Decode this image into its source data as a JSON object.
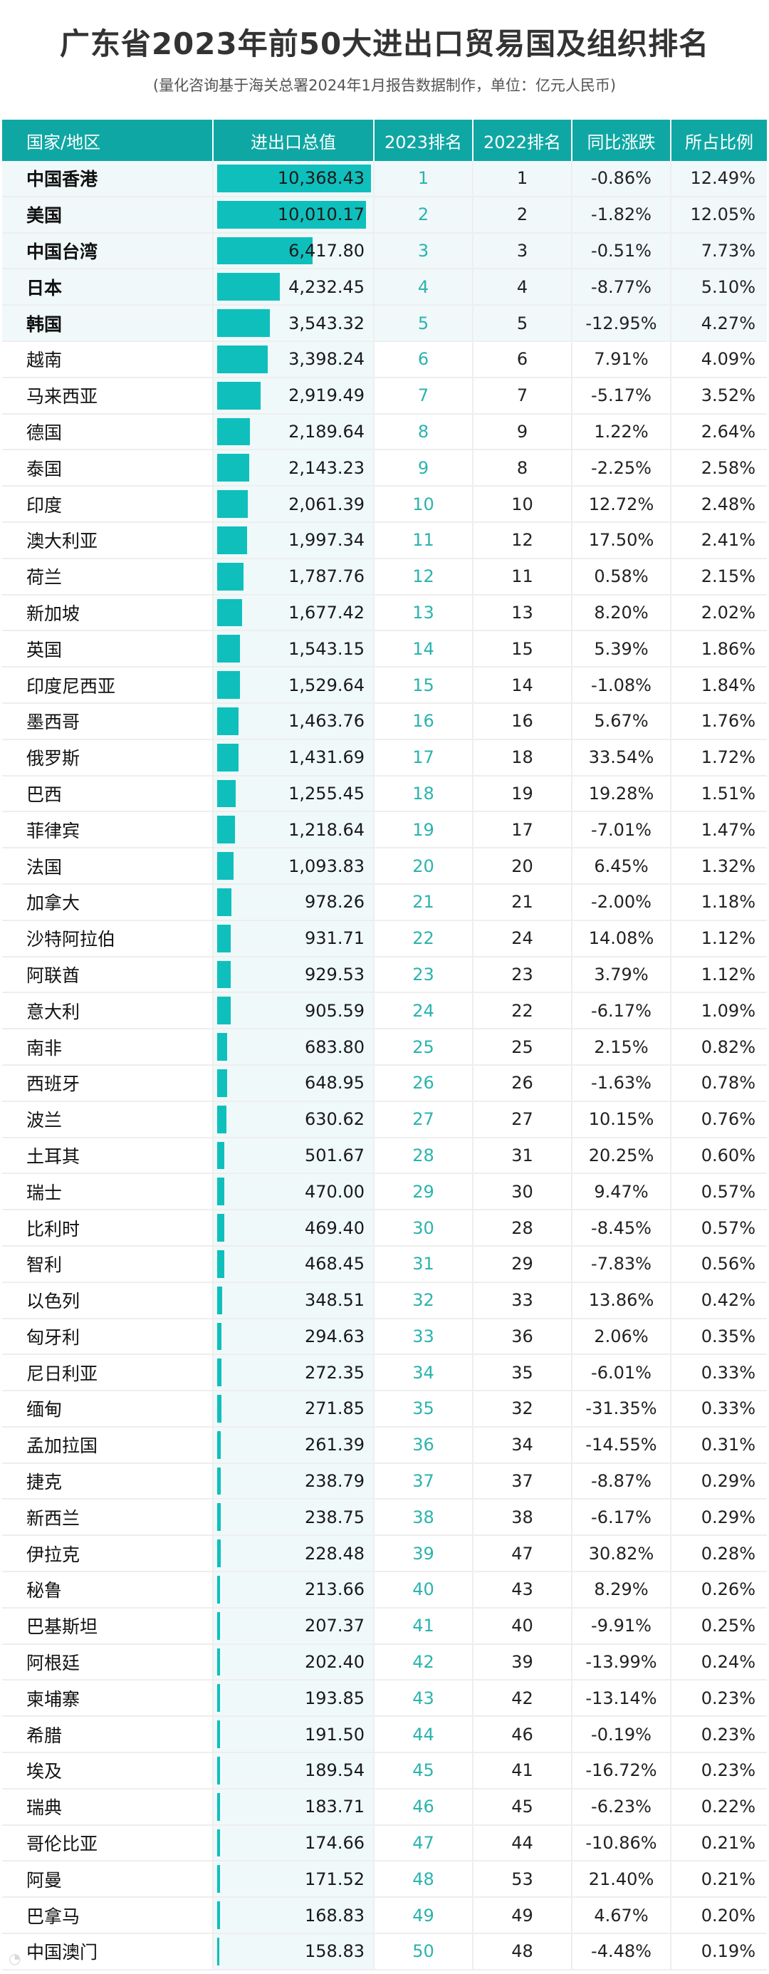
{
  "header": {
    "title": "广东省2023年前50大进出口贸易国及组织排名",
    "subtitle": "(量化咨询基于海关总署2024年1月报告数据制作，单位：亿元人民币)"
  },
  "table": {
    "columns": [
      "国家/地区",
      "进出口总值",
      "2023排名",
      "2022排名",
      "同比涨跌",
      "所占比例"
    ],
    "rows": [
      {
        "name": "中国香港",
        "value": "10,368.43",
        "r2023": "1",
        "r2022": "1",
        "yoy": "-0.86%",
        "share": "12.49%"
      },
      {
        "name": "美国",
        "value": "10,010.17",
        "r2023": "2",
        "r2022": "2",
        "yoy": "-1.82%",
        "share": "12.05%"
      },
      {
        "name": "中国台湾",
        "value": "6,417.80",
        "r2023": "3",
        "r2022": "3",
        "yoy": "-0.51%",
        "share": "7.73%"
      },
      {
        "name": "日本",
        "value": "4,232.45",
        "r2023": "4",
        "r2022": "4",
        "yoy": "-8.77%",
        "share": "5.10%"
      },
      {
        "name": "韩国",
        "value": "3,543.32",
        "r2023": "5",
        "r2022": "5",
        "yoy": "-12.95%",
        "share": "4.27%"
      },
      {
        "name": "越南",
        "value": "3,398.24",
        "r2023": "6",
        "r2022": "6",
        "yoy": "7.91%",
        "share": "4.09%"
      },
      {
        "name": "马来西亚",
        "value": "2,919.49",
        "r2023": "7",
        "r2022": "7",
        "yoy": "-5.17%",
        "share": "3.52%"
      },
      {
        "name": "德国",
        "value": "2,189.64",
        "r2023": "8",
        "r2022": "9",
        "yoy": "1.22%",
        "share": "2.64%"
      },
      {
        "name": "泰国",
        "value": "2,143.23",
        "r2023": "9",
        "r2022": "8",
        "yoy": "-2.25%",
        "share": "2.58%"
      },
      {
        "name": "印度",
        "value": "2,061.39",
        "r2023": "10",
        "r2022": "10",
        "yoy": "12.72%",
        "share": "2.48%"
      },
      {
        "name": "澳大利亚",
        "value": "1,997.34",
        "r2023": "11",
        "r2022": "12",
        "yoy": "17.50%",
        "share": "2.41%"
      },
      {
        "name": "荷兰",
        "value": "1,787.76",
        "r2023": "12",
        "r2022": "11",
        "yoy": "0.58%",
        "share": "2.15%"
      },
      {
        "name": "新加坡",
        "value": "1,677.42",
        "r2023": "13",
        "r2022": "13",
        "yoy": "8.20%",
        "share": "2.02%"
      },
      {
        "name": "英国",
        "value": "1,543.15",
        "r2023": "14",
        "r2022": "15",
        "yoy": "5.39%",
        "share": "1.86%"
      },
      {
        "name": "印度尼西亚",
        "value": "1,529.64",
        "r2023": "15",
        "r2022": "14",
        "yoy": "-1.08%",
        "share": "1.84%"
      },
      {
        "name": "墨西哥",
        "value": "1,463.76",
        "r2023": "16",
        "r2022": "16",
        "yoy": "5.67%",
        "share": "1.76%"
      },
      {
        "name": "俄罗斯",
        "value": "1,431.69",
        "r2023": "17",
        "r2022": "18",
        "yoy": "33.54%",
        "share": "1.72%"
      },
      {
        "name": "巴西",
        "value": "1,255.45",
        "r2023": "18",
        "r2022": "19",
        "yoy": "19.28%",
        "share": "1.51%"
      },
      {
        "name": "菲律宾",
        "value": "1,218.64",
        "r2023": "19",
        "r2022": "17",
        "yoy": "-7.01%",
        "share": "1.47%"
      },
      {
        "name": "法国",
        "value": "1,093.83",
        "r2023": "20",
        "r2022": "20",
        "yoy": "6.45%",
        "share": "1.32%"
      },
      {
        "name": "加拿大",
        "value": "978.26",
        "r2023": "21",
        "r2022": "21",
        "yoy": "-2.00%",
        "share": "1.18%"
      },
      {
        "name": "沙特阿拉伯",
        "value": "931.71",
        "r2023": "22",
        "r2022": "24",
        "yoy": "14.08%",
        "share": "1.12%"
      },
      {
        "name": "阿联酋",
        "value": "929.53",
        "r2023": "23",
        "r2022": "23",
        "yoy": "3.79%",
        "share": "1.12%"
      },
      {
        "name": "意大利",
        "value": "905.59",
        "r2023": "24",
        "r2022": "22",
        "yoy": "-6.17%",
        "share": "1.09%"
      },
      {
        "name": "南非",
        "value": "683.80",
        "r2023": "25",
        "r2022": "25",
        "yoy": "2.15%",
        "share": "0.82%"
      },
      {
        "name": "西班牙",
        "value": "648.95",
        "r2023": "26",
        "r2022": "26",
        "yoy": "-1.63%",
        "share": "0.78%"
      },
      {
        "name": "波兰",
        "value": "630.62",
        "r2023": "27",
        "r2022": "27",
        "yoy": "10.15%",
        "share": "0.76%"
      },
      {
        "name": "土耳其",
        "value": "501.67",
        "r2023": "28",
        "r2022": "31",
        "yoy": "20.25%",
        "share": "0.60%"
      },
      {
        "name": "瑞士",
        "value": "470.00",
        "r2023": "29",
        "r2022": "30",
        "yoy": "9.47%",
        "share": "0.57%"
      },
      {
        "name": "比利时",
        "value": "469.40",
        "r2023": "30",
        "r2022": "28",
        "yoy": "-8.45%",
        "share": "0.57%"
      },
      {
        "name": "智利",
        "value": "468.45",
        "r2023": "31",
        "r2022": "29",
        "yoy": "-7.83%",
        "share": "0.56%"
      },
      {
        "name": "以色列",
        "value": "348.51",
        "r2023": "32",
        "r2022": "33",
        "yoy": "13.86%",
        "share": "0.42%"
      },
      {
        "name": "匈牙利",
        "value": "294.63",
        "r2023": "33",
        "r2022": "36",
        "yoy": "2.06%",
        "share": "0.35%"
      },
      {
        "name": "尼日利亚",
        "value": "272.35",
        "r2023": "34",
        "r2022": "35",
        "yoy": "-6.01%",
        "share": "0.33%"
      },
      {
        "name": "缅甸",
        "value": "271.85",
        "r2023": "35",
        "r2022": "32",
        "yoy": "-31.35%",
        "share": "0.33%"
      },
      {
        "name": "孟加拉国",
        "value": "261.39",
        "r2023": "36",
        "r2022": "34",
        "yoy": "-14.55%",
        "share": "0.31%"
      },
      {
        "name": "捷克",
        "value": "238.79",
        "r2023": "37",
        "r2022": "37",
        "yoy": "-8.87%",
        "share": "0.29%"
      },
      {
        "name": "新西兰",
        "value": "238.75",
        "r2023": "38",
        "r2022": "38",
        "yoy": "-6.17%",
        "share": "0.29%"
      },
      {
        "name": "伊拉克",
        "value": "228.48",
        "r2023": "39",
        "r2022": "47",
        "yoy": "30.82%",
        "share": "0.28%"
      },
      {
        "name": "秘鲁",
        "value": "213.66",
        "r2023": "40",
        "r2022": "43",
        "yoy": "8.29%",
        "share": "0.26%"
      },
      {
        "name": "巴基斯坦",
        "value": "207.37",
        "r2023": "41",
        "r2022": "40",
        "yoy": "-9.91%",
        "share": "0.25%"
      },
      {
        "name": "阿根廷",
        "value": "202.40",
        "r2023": "42",
        "r2022": "39",
        "yoy": "-13.99%",
        "share": "0.24%"
      },
      {
        "name": "柬埔寨",
        "value": "193.85",
        "r2023": "43",
        "r2022": "42",
        "yoy": "-13.14%",
        "share": "0.23%"
      },
      {
        "name": "希腊",
        "value": "191.50",
        "r2023": "44",
        "r2022": "46",
        "yoy": "-0.19%",
        "share": "0.23%"
      },
      {
        "name": "埃及",
        "value": "189.54",
        "r2023": "45",
        "r2022": "41",
        "yoy": "-16.72%",
        "share": "0.23%"
      },
      {
        "name": "瑞典",
        "value": "183.71",
        "r2023": "46",
        "r2022": "45",
        "yoy": "-6.23%",
        "share": "0.22%"
      },
      {
        "name": "哥伦比亚",
        "value": "174.66",
        "r2023": "47",
        "r2022": "44",
        "yoy": "-10.86%",
        "share": "0.21%"
      },
      {
        "name": "阿曼",
        "value": "171.52",
        "r2023": "48",
        "r2022": "53",
        "yoy": "21.40%",
        "share": "0.21%"
      },
      {
        "name": "巴拿马",
        "value": "168.83",
        "r2023": "49",
        "r2022": "49",
        "yoy": "4.67%",
        "share": "0.20%"
      },
      {
        "name": "中国澳门",
        "value": "158.83",
        "r2023": "50",
        "r2022": "48",
        "yoy": "-4.48%",
        "share": "0.19%"
      }
    ]
  },
  "colors": {
    "header_bg": "#0fa7a3",
    "bar": "#0fbfbc",
    "rank_text": "#2bb3ae",
    "top5_row_bg": "#f0f8fa"
  },
  "chart_data": {
    "type": "table",
    "title": "广东省2023年前50大进出口贸易国及组织排名",
    "subtitle": "(量化咨询基于海关总署2024年1月报告数据制作，单位：亿元人民币)",
    "columns": [
      "国家/地区",
      "进出口总值",
      "2023排名",
      "2022排名",
      "同比涨跌",
      "所占比例"
    ],
    "categories": [
      "中国香港",
      "美国",
      "中国台湾",
      "日本",
      "韩国",
      "越南",
      "马来西亚",
      "德国",
      "泰国",
      "印度",
      "澳大利亚",
      "荷兰",
      "新加坡",
      "英国",
      "印度尼西亚",
      "墨西哥",
      "俄罗斯",
      "巴西",
      "菲律宾",
      "法国",
      "加拿大",
      "沙特阿拉伯",
      "阿联酋",
      "意大利",
      "南非",
      "西班牙",
      "波兰",
      "土耳其",
      "瑞士",
      "比利时",
      "智利",
      "以色列",
      "匈牙利",
      "尼日利亚",
      "缅甸",
      "孟加拉国",
      "捷克",
      "新西兰",
      "伊拉克",
      "秘鲁",
      "巴基斯坦",
      "阿根廷",
      "柬埔寨",
      "希腊",
      "埃及",
      "瑞典",
      "哥伦比亚",
      "阿曼",
      "巴拿马",
      "中国澳门"
    ],
    "series": [
      {
        "name": "进出口总值",
        "values": [
          10368.43,
          10010.17,
          6417.8,
          4232.45,
          3543.32,
          3398.24,
          2919.49,
          2189.64,
          2143.23,
          2061.39,
          1997.34,
          1787.76,
          1677.42,
          1543.15,
          1529.64,
          1463.76,
          1431.69,
          1255.45,
          1218.64,
          1093.83,
          978.26,
          931.71,
          929.53,
          905.59,
          683.8,
          648.95,
          630.62,
          501.67,
          470.0,
          469.4,
          468.45,
          348.51,
          294.63,
          272.35,
          271.85,
          261.39,
          238.79,
          238.75,
          228.48,
          213.66,
          207.37,
          202.4,
          193.85,
          191.5,
          189.54,
          183.71,
          174.66,
          171.52,
          168.83,
          158.83
        ]
      },
      {
        "name": "2023排名",
        "values": [
          1,
          2,
          3,
          4,
          5,
          6,
          7,
          8,
          9,
          10,
          11,
          12,
          13,
          14,
          15,
          16,
          17,
          18,
          19,
          20,
          21,
          22,
          23,
          24,
          25,
          26,
          27,
          28,
          29,
          30,
          31,
          32,
          33,
          34,
          35,
          36,
          37,
          38,
          39,
          40,
          41,
          42,
          43,
          44,
          45,
          46,
          47,
          48,
          49,
          50
        ]
      },
      {
        "name": "2022排名",
        "values": [
          1,
          2,
          3,
          4,
          5,
          6,
          7,
          9,
          8,
          10,
          12,
          11,
          13,
          15,
          14,
          16,
          18,
          19,
          17,
          20,
          21,
          24,
          23,
          22,
          25,
          26,
          27,
          31,
          30,
          28,
          29,
          33,
          36,
          35,
          32,
          34,
          37,
          38,
          47,
          43,
          40,
          39,
          42,
          46,
          41,
          45,
          44,
          53,
          49,
          48
        ]
      },
      {
        "name": "同比涨跌(%)",
        "values": [
          -0.86,
          -1.82,
          -0.51,
          -8.77,
          -12.95,
          7.91,
          -5.17,
          1.22,
          -2.25,
          12.72,
          17.5,
          0.58,
          8.2,
          5.39,
          -1.08,
          5.67,
          33.54,
          19.28,
          -7.01,
          6.45,
          -2.0,
          14.08,
          3.79,
          -6.17,
          2.15,
          -1.63,
          10.15,
          20.25,
          9.47,
          -8.45,
          -7.83,
          13.86,
          2.06,
          -6.01,
          -31.35,
          -14.55,
          -8.87,
          -6.17,
          30.82,
          8.29,
          -9.91,
          -13.99,
          -13.14,
          -0.19,
          -16.72,
          -6.23,
          -10.86,
          21.4,
          4.67,
          -4.48
        ]
      },
      {
        "name": "所占比例(%)",
        "values": [
          12.49,
          12.05,
          7.73,
          5.1,
          4.27,
          4.09,
          3.52,
          2.64,
          2.58,
          2.48,
          2.41,
          2.15,
          2.02,
          1.86,
          1.84,
          1.76,
          1.72,
          1.51,
          1.47,
          1.32,
          1.18,
          1.12,
          1.12,
          1.09,
          0.82,
          0.78,
          0.76,
          0.6,
          0.57,
          0.57,
          0.56,
          0.42,
          0.35,
          0.33,
          0.33,
          0.31,
          0.29,
          0.29,
          0.28,
          0.26,
          0.25,
          0.24,
          0.23,
          0.23,
          0.23,
          0.22,
          0.21,
          0.21,
          0.2,
          0.19
        ]
      }
    ],
    "unit": "亿元人民币",
    "bar_column": "进出口总值",
    "bar_max": 10368.43
  }
}
